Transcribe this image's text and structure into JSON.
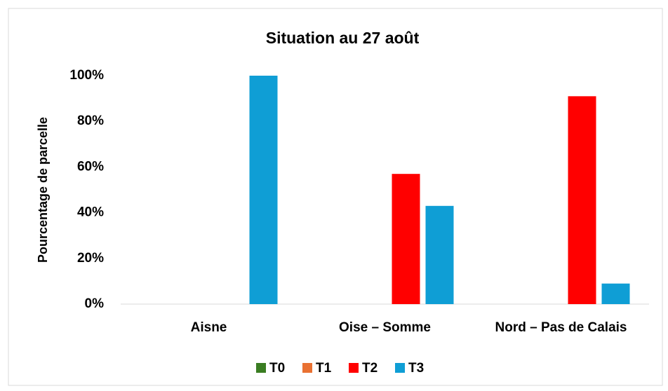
{
  "chart_data": {
    "type": "bar",
    "title": "Situation au 27 août",
    "y_label": "Pourcentage de parcelle",
    "categories": [
      "Aisne",
      "Oise – Somme",
      "Nord – Pas de Calais"
    ],
    "series": [
      {
        "name": "T0",
        "color": "#3a7d22",
        "values": [
          0,
          0,
          0
        ]
      },
      {
        "name": "T1",
        "color": "#e97132",
        "values": [
          0,
          0,
          0
        ]
      },
      {
        "name": "T2",
        "color": "#ff0000",
        "values": [
          0,
          57,
          91
        ]
      },
      {
        "name": "T3",
        "color": "#0f9ed5",
        "values": [
          100,
          43,
          9
        ]
      }
    ],
    "ylim": [
      0,
      100
    ],
    "yticks": [
      {
        "value": 0,
        "label": "0%"
      },
      {
        "value": 20,
        "label": "20%"
      },
      {
        "value": 40,
        "label": "40%"
      },
      {
        "value": 60,
        "label": "60%"
      },
      {
        "value": 80,
        "label": "80%"
      },
      {
        "value": 100,
        "label": "100%"
      }
    ],
    "grid": false,
    "legend": "bottom"
  }
}
